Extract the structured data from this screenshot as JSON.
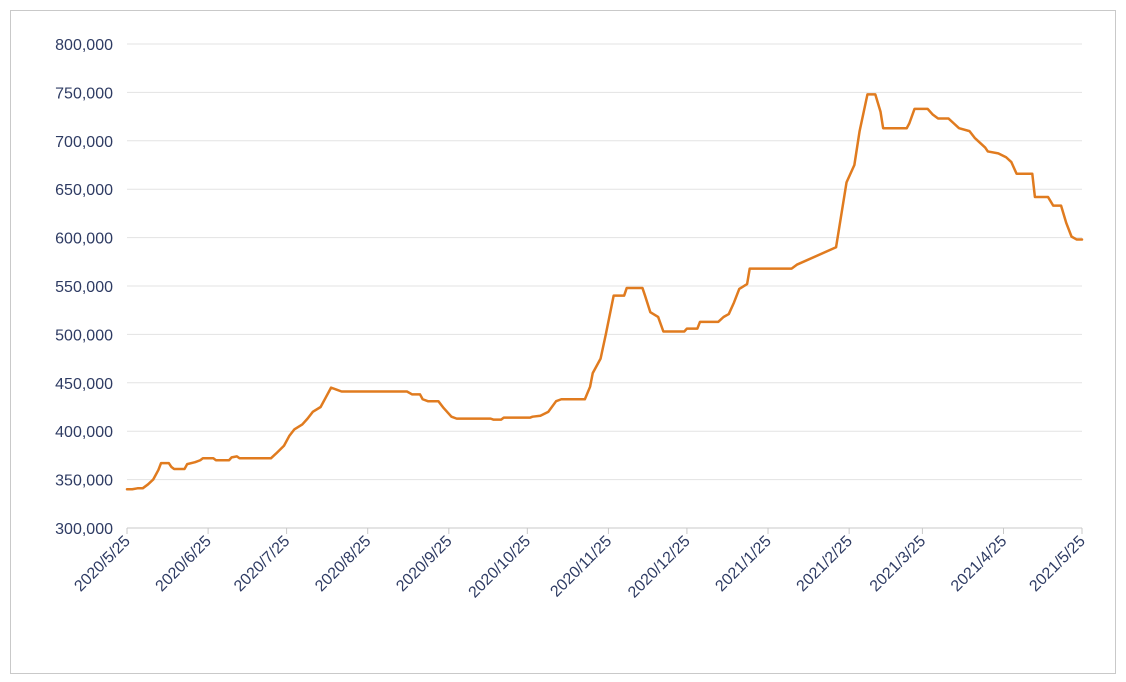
{
  "chart_data": {
    "type": "line",
    "title": "",
    "xlabel": "",
    "ylabel": "",
    "ylim": [
      300000,
      800000
    ],
    "xlim": [
      "2020-05-25",
      "2021-05-25"
    ],
    "grid": "horizontal",
    "legend": "none",
    "y_ticks": [
      "300,000",
      "350,000",
      "400,000",
      "450,000",
      "500,000",
      "550,000",
      "600,000",
      "650,000",
      "700,000",
      "750,000",
      "800,000"
    ],
    "x_ticks": [
      "2020/5/25",
      "2020/6/25",
      "2020/7/25",
      "2020/8/25",
      "2020/9/25",
      "2020/10/25",
      "2020/11/25",
      "2020/12/25",
      "2021/1/25",
      "2021/2/25",
      "2021/3/25",
      "2021/4/25",
      "2021/5/25"
    ],
    "colors": {
      "line": "#e07b1f",
      "grid": "#e3e3e3",
      "axis": "#c8c8c8",
      "text": "#2e3b63"
    },
    "series": [
      {
        "points": [
          [
            "2020-05-25",
            340000
          ],
          [
            "2020-05-27",
            340000
          ],
          [
            "2020-05-29",
            341000
          ],
          [
            "2020-05-31",
            341000
          ],
          [
            "2020-06-02",
            345000
          ],
          [
            "2020-06-04",
            350000
          ],
          [
            "2020-06-06",
            360000
          ],
          [
            "2020-06-07",
            367000
          ],
          [
            "2020-06-10",
            367000
          ],
          [
            "2020-06-11",
            363000
          ],
          [
            "2020-06-12",
            361000
          ],
          [
            "2020-06-16",
            361000
          ],
          [
            "2020-06-17",
            366000
          ],
          [
            "2020-06-20",
            368000
          ],
          [
            "2020-06-22",
            370000
          ],
          [
            "2020-06-23",
            372000
          ],
          [
            "2020-06-27",
            372000
          ],
          [
            "2020-06-28",
            370000
          ],
          [
            "2020-07-03",
            370000
          ],
          [
            "2020-07-04",
            373000
          ],
          [
            "2020-07-06",
            374000
          ],
          [
            "2020-07-07",
            372000
          ],
          [
            "2020-07-19",
            372000
          ],
          [
            "2020-07-21",
            377000
          ],
          [
            "2020-07-24",
            385000
          ],
          [
            "2020-07-26",
            395000
          ],
          [
            "2020-07-28",
            402000
          ],
          [
            "2020-07-31",
            407000
          ],
          [
            "2020-08-02",
            413000
          ],
          [
            "2020-08-04",
            420000
          ],
          [
            "2020-08-07",
            425000
          ],
          [
            "2020-08-09",
            435000
          ],
          [
            "2020-08-11",
            445000
          ],
          [
            "2020-08-13",
            443000
          ],
          [
            "2020-08-15",
            441000
          ],
          [
            "2020-09-09",
            441000
          ],
          [
            "2020-09-11",
            438000
          ],
          [
            "2020-09-14",
            438000
          ],
          [
            "2020-09-15",
            433000
          ],
          [
            "2020-09-17",
            431000
          ],
          [
            "2020-09-21",
            431000
          ],
          [
            "2020-09-23",
            424000
          ],
          [
            "2020-09-26",
            415000
          ],
          [
            "2020-09-28",
            413000
          ],
          [
            "2020-10-11",
            413000
          ],
          [
            "2020-10-12",
            412000
          ],
          [
            "2020-10-15",
            412000
          ],
          [
            "2020-10-16",
            414000
          ],
          [
            "2020-10-26",
            414000
          ],
          [
            "2020-10-27",
            415000
          ],
          [
            "2020-10-30",
            416000
          ],
          [
            "2020-11-02",
            420000
          ],
          [
            "2020-11-05",
            431000
          ],
          [
            "2020-11-07",
            433000
          ],
          [
            "2020-11-16",
            433000
          ],
          [
            "2020-11-18",
            446000
          ],
          [
            "2020-11-19",
            460000
          ],
          [
            "2020-11-22",
            475000
          ],
          [
            "2020-11-24",
            500000
          ],
          [
            "2020-11-27",
            540000
          ],
          [
            "2020-12-01",
            540000
          ],
          [
            "2020-12-02",
            548000
          ],
          [
            "2020-12-08",
            548000
          ],
          [
            "2020-12-09",
            540000
          ],
          [
            "2020-12-11",
            523000
          ],
          [
            "2020-12-14",
            518000
          ],
          [
            "2020-12-16",
            503000
          ],
          [
            "2020-12-24",
            503000
          ],
          [
            "2020-12-25",
            506000
          ],
          [
            "2020-12-29",
            506000
          ],
          [
            "2020-12-30",
            513000
          ],
          [
            "2021-01-06",
            513000
          ],
          [
            "2021-01-08",
            518000
          ],
          [
            "2021-01-10",
            521000
          ],
          [
            "2021-01-12",
            533000
          ],
          [
            "2021-01-14",
            547000
          ],
          [
            "2021-01-17",
            552000
          ],
          [
            "2021-01-18",
            568000
          ],
          [
            "2021-02-03",
            568000
          ],
          [
            "2021-02-05",
            572000
          ],
          [
            "2021-02-20",
            590000
          ],
          [
            "2021-02-24",
            657000
          ],
          [
            "2021-02-27",
            675000
          ],
          [
            "2021-03-01",
            710000
          ],
          [
            "2021-03-04",
            748000
          ],
          [
            "2021-03-07",
            748000
          ],
          [
            "2021-03-09",
            730000
          ],
          [
            "2021-03-10",
            713000
          ],
          [
            "2021-03-19",
            713000
          ],
          [
            "2021-03-20",
            718000
          ],
          [
            "2021-03-22",
            733000
          ],
          [
            "2021-03-27",
            733000
          ],
          [
            "2021-03-29",
            727000
          ],
          [
            "2021-03-31",
            723000
          ],
          [
            "2021-04-04",
            723000
          ],
          [
            "2021-04-06",
            718000
          ],
          [
            "2021-04-08",
            713000
          ],
          [
            "2021-04-12",
            710000
          ],
          [
            "2021-04-14",
            703000
          ],
          [
            "2021-04-18",
            693000
          ],
          [
            "2021-04-19",
            689000
          ],
          [
            "2021-04-23",
            687000
          ],
          [
            "2021-04-26",
            683000
          ],
          [
            "2021-04-28",
            678000
          ],
          [
            "2021-04-30",
            666000
          ],
          [
            "2021-05-06",
            666000
          ],
          [
            "2021-05-07",
            642000
          ],
          [
            "2021-05-12",
            642000
          ],
          [
            "2021-05-14",
            633000
          ],
          [
            "2021-05-17",
            633000
          ],
          [
            "2021-05-19",
            615000
          ],
          [
            "2021-05-21",
            601000
          ],
          [
            "2021-05-23",
            598000
          ],
          [
            "2021-05-25",
            598000
          ]
        ]
      }
    ]
  }
}
